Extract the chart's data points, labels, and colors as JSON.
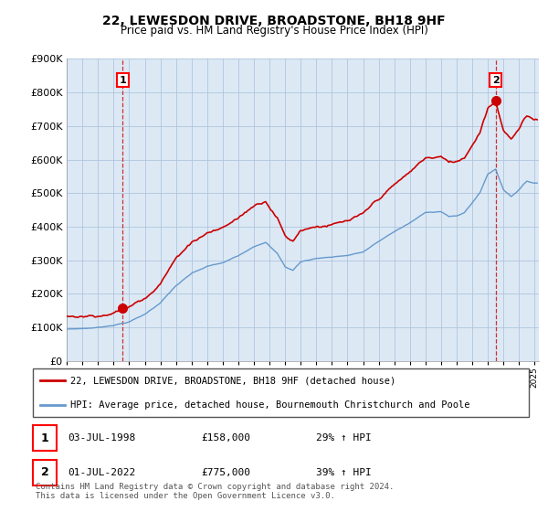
{
  "title": "22, LEWESDON DRIVE, BROADSTONE, BH18 9HF",
  "subtitle": "Price paid vs. HM Land Registry's House Price Index (HPI)",
  "ylim": [
    0,
    900000
  ],
  "xlim_start": 1995.0,
  "xlim_end": 2025.3,
  "sale1_date": 1998.58,
  "sale1_price": 158000,
  "sale2_date": 2022.5,
  "sale2_price": 775000,
  "sale1_date_str": "03-JUL-1998",
  "sale2_date_str": "01-JUL-2022",
  "sale1_hpi_pct": "29% ↑ HPI",
  "sale2_hpi_pct": "39% ↑ HPI",
  "legend1": "22, LEWESDON DRIVE, BROADSTONE, BH18 9HF (detached house)",
  "legend2": "HPI: Average price, detached house, Bournemouth Christchurch and Poole",
  "footnote": "Contains HM Land Registry data © Crown copyright and database right 2024.\nThis data is licensed under the Open Government Licence v3.0.",
  "hpi_color": "#6699cc",
  "sale_color": "#cc0000",
  "plot_bg": "#dce9f5",
  "grid_color": "#b0c4de"
}
